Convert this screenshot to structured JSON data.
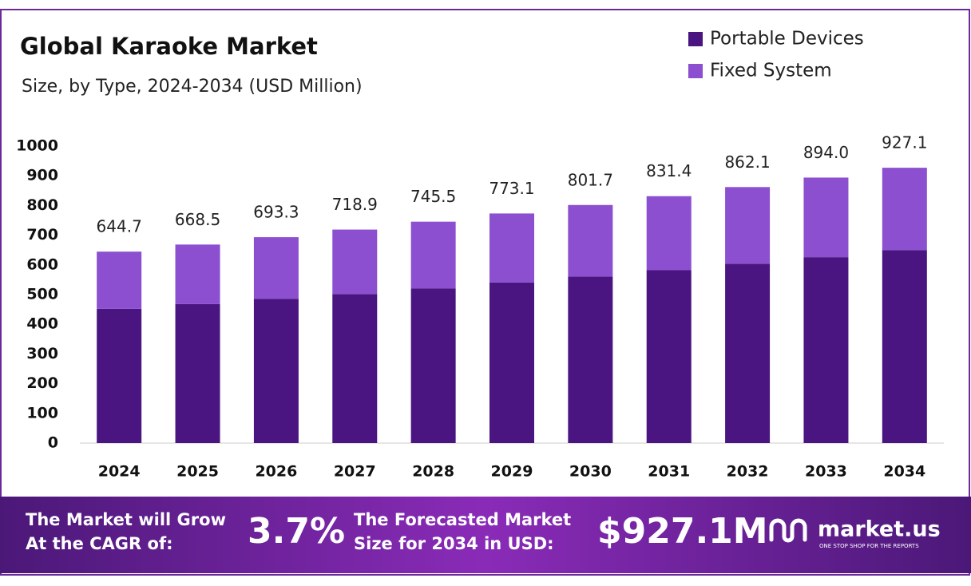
{
  "chart_data": {
    "type": "stacked_bar",
    "title": "Global Karaoke Market",
    "subtitle": "Size, by Type, 2024-2034 (USD Million)",
    "categories": [
      "2024",
      "2025",
      "2026",
      "2027",
      "2028",
      "2029",
      "2030",
      "2031",
      "2032",
      "2033",
      "2034"
    ],
    "series": [
      {
        "name": "Portable Devices",
        "color": "#4a1580",
        "values": [
          452,
          468,
          486,
          502,
          521,
          541,
          561,
          582,
          604,
          626,
          650
        ]
      },
      {
        "name": "Fixed System",
        "color": "#8b4fd0",
        "values": [
          192.7,
          200.5,
          207.3,
          216.9,
          224.5,
          232.1,
          240.7,
          249.4,
          258.1,
          268.0,
          277.1
        ]
      }
    ],
    "totals": [
      644.7,
      668.5,
      693.3,
      718.9,
      745.5,
      773.1,
      801.7,
      831.4,
      862.1,
      894.0,
      927.1
    ],
    "total_labels": [
      "644.7",
      "668.5",
      "693.3",
      "718.9",
      "745.5",
      "773.1",
      "801.7",
      "831.4",
      "862.1",
      "894.0",
      "927.1"
    ],
    "ylim": [
      0,
      1000
    ],
    "yticks": [
      0,
      100,
      200,
      300,
      400,
      500,
      600,
      700,
      800,
      900,
      1000
    ],
    "grid": false,
    "legend": "top-right"
  },
  "footer": {
    "cagr_text_1": "The Market will Grow",
    "cagr_text_2": "At the CAGR of:",
    "cagr_value": "3.7%",
    "forecast_text_1": "The Forecasted Market",
    "forecast_text_2": "Size for 2034 in USD:",
    "forecast_value": "$927.1M",
    "brand": "market.us",
    "tagline": "ONE STOP SHOP FOR THE REPORTS"
  }
}
